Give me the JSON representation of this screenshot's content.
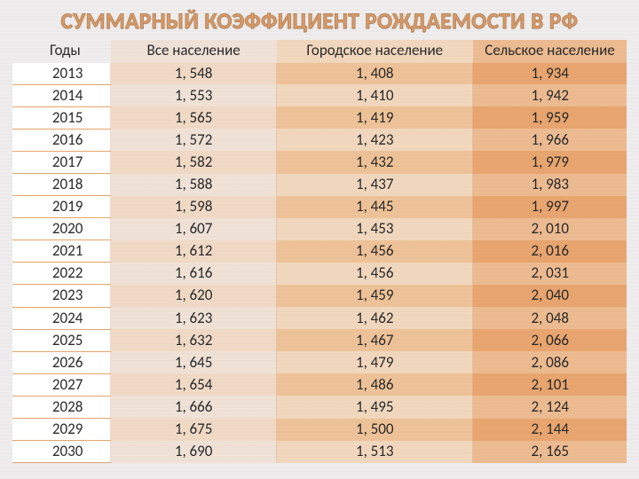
{
  "title": "СУММАРНЫЙ КОЭФФИЦИЕНТ РОЖДАЕМОСТИ В РФ",
  "table": {
    "type": "table",
    "columns": [
      "Годы",
      "Все население",
      "Городское население",
      "Сельское население"
    ],
    "column_widths_pct": [
      16,
      27,
      32,
      25
    ],
    "background_colors": {
      "page": "#efeded",
      "col1_light": "rgba(242,196,150,0.25)",
      "col2_light": "rgba(242,196,150,0.55)",
      "col3_light": "rgba(235,160,95,0.65)",
      "stripe_col1": "rgba(242,196,150,0.45)",
      "stripe_col2": "rgba(238,175,115,0.7)",
      "stripe_col3": "rgba(230,145,75,0.78)",
      "year_cell": "#ffffff",
      "year_border": "#e2a56b"
    },
    "title_color": "#d89a6a",
    "title_fontsize_pt": 20,
    "body_fontsize_pt": 13,
    "rows": [
      [
        "2013",
        "1, 548",
        "1, 408",
        "1, 934"
      ],
      [
        "2014",
        "1, 553",
        "1, 410",
        "1, 942"
      ],
      [
        "2015",
        "1, 565",
        "1, 419",
        "1, 959"
      ],
      [
        "2016",
        "1, 572",
        "1, 423",
        "1, 966"
      ],
      [
        "2017",
        "1, 582",
        "1, 432",
        "1, 979"
      ],
      [
        "2018",
        "1, 588",
        "1, 437",
        "1, 983"
      ],
      [
        "2019",
        "1, 598",
        "1, 445",
        "1, 997"
      ],
      [
        "2020",
        "1, 607",
        "1, 453",
        "2, 010"
      ],
      [
        "2021",
        "1, 612",
        "1, 456",
        "2, 016"
      ],
      [
        "2022",
        "1, 616",
        "1, 456",
        "2, 031"
      ],
      [
        "2023",
        "1, 620",
        "1, 459",
        "2, 040"
      ],
      [
        "2024",
        "1, 623",
        "1, 462",
        "2, 048"
      ],
      [
        "2025",
        "1, 632",
        "1, 467",
        "2, 066"
      ],
      [
        "2026",
        "1, 645",
        "1, 479",
        "2, 086"
      ],
      [
        "2027",
        "1, 654",
        "1, 486",
        "2, 101"
      ],
      [
        "2028",
        "1, 666",
        "1, 495",
        "2, 124"
      ],
      [
        "2029",
        "1, 675",
        "1, 500",
        "2, 144"
      ],
      [
        "2030",
        "1, 690",
        "1, 513",
        "2, 165"
      ]
    ]
  }
}
